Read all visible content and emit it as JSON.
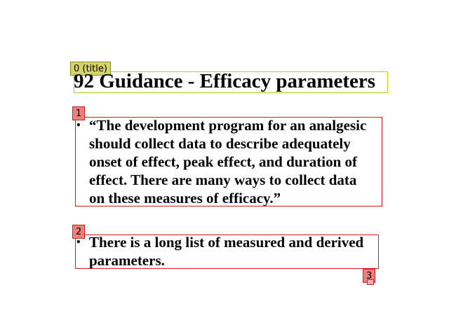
{
  "annotations": {
    "title_tag": "0 (title)",
    "body1_tag": "1",
    "body2_tag": "2",
    "footer_tag": "3"
  },
  "slide": {
    "title": "92 Guidance - Efficacy parameters",
    "bullets": [
      {
        "symbol": "•",
        "lines": [
          "“The development program for an analgesic",
          "should collect data to describe adequately",
          "onset of effect, peak effect, and duration of",
          "effect.  There are many ways to collect data",
          "on these measures of efficacy.”"
        ]
      },
      {
        "symbol": "•",
        "lines": [
          "There is a long list of measured and derived",
          "parameters."
        ]
      }
    ]
  },
  "colors": {
    "title_box": "#c9c420",
    "body_box": "#e01818"
  }
}
